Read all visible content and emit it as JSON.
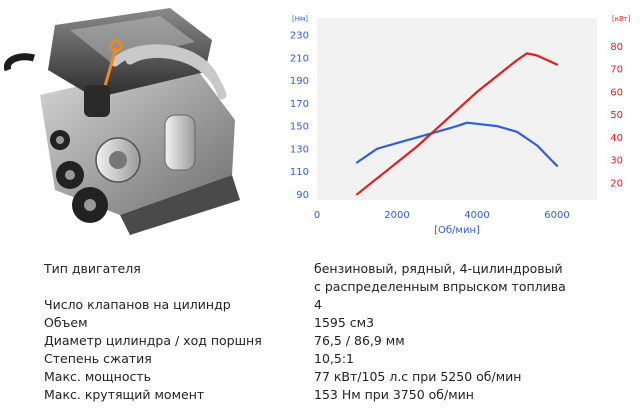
{
  "chart_data": {
    "type": "line",
    "xlabel": "[Об/мин]",
    "ylabel_left": "[Нм]",
    "ylabel_right": "[кВт]",
    "x_ticks": [
      0,
      2000,
      4000,
      6000
    ],
    "xlim": [
      0,
      7000
    ],
    "y_left_ticks": [
      90,
      110,
      130,
      150,
      170,
      190,
      210,
      230
    ],
    "y_left_lim": [
      85,
      245
    ],
    "y_right_ticks": [
      20,
      30,
      40,
      50,
      60,
      70,
      80
    ],
    "y_right_lim": [
      12.5,
      92.5
    ],
    "grid": false,
    "series": [
      {
        "axis": "left",
        "color": "#2f5fd8",
        "x": [
          1000,
          1500,
          2000,
          2500,
          3000,
          3500,
          3750,
          4000,
          4500,
          5000,
          5500,
          6000
        ],
        "values": [
          118,
          130,
          135,
          140,
          145,
          150,
          153,
          152,
          150,
          145,
          133,
          115
        ]
      },
      {
        "axis": "right",
        "color": "#e02020",
        "x": [
          1000,
          1500,
          2000,
          2500,
          3000,
          3500,
          4000,
          4500,
          5000,
          5250,
          5500,
          6000
        ],
        "values": [
          15,
          22,
          29,
          36,
          44,
          52,
          60,
          67,
          74,
          77,
          76,
          72
        ]
      }
    ]
  },
  "specs": [
    {
      "label": "Тип двигателя",
      "value": "бензиновый, рядный, 4-цилиндровый",
      "value2": "с распределенным впрыском топлива"
    },
    {
      "label": "Число клапанов на цилиндр",
      "value": "4"
    },
    {
      "label": "Объем",
      "value": "1595 см3"
    },
    {
      "label": "Диаметр цилиндра / ход поршня",
      "value": "76,5 / 86,9 мм"
    },
    {
      "label": "Степень сжатия",
      "value": "10,5:1"
    },
    {
      "label": "Макс. мощность",
      "value": "77 кВт/105 л.с при 5250 об/мин"
    },
    {
      "label": "Макс. крутящий момент",
      "value": "153 Нм при 3750 об/мин"
    }
  ]
}
